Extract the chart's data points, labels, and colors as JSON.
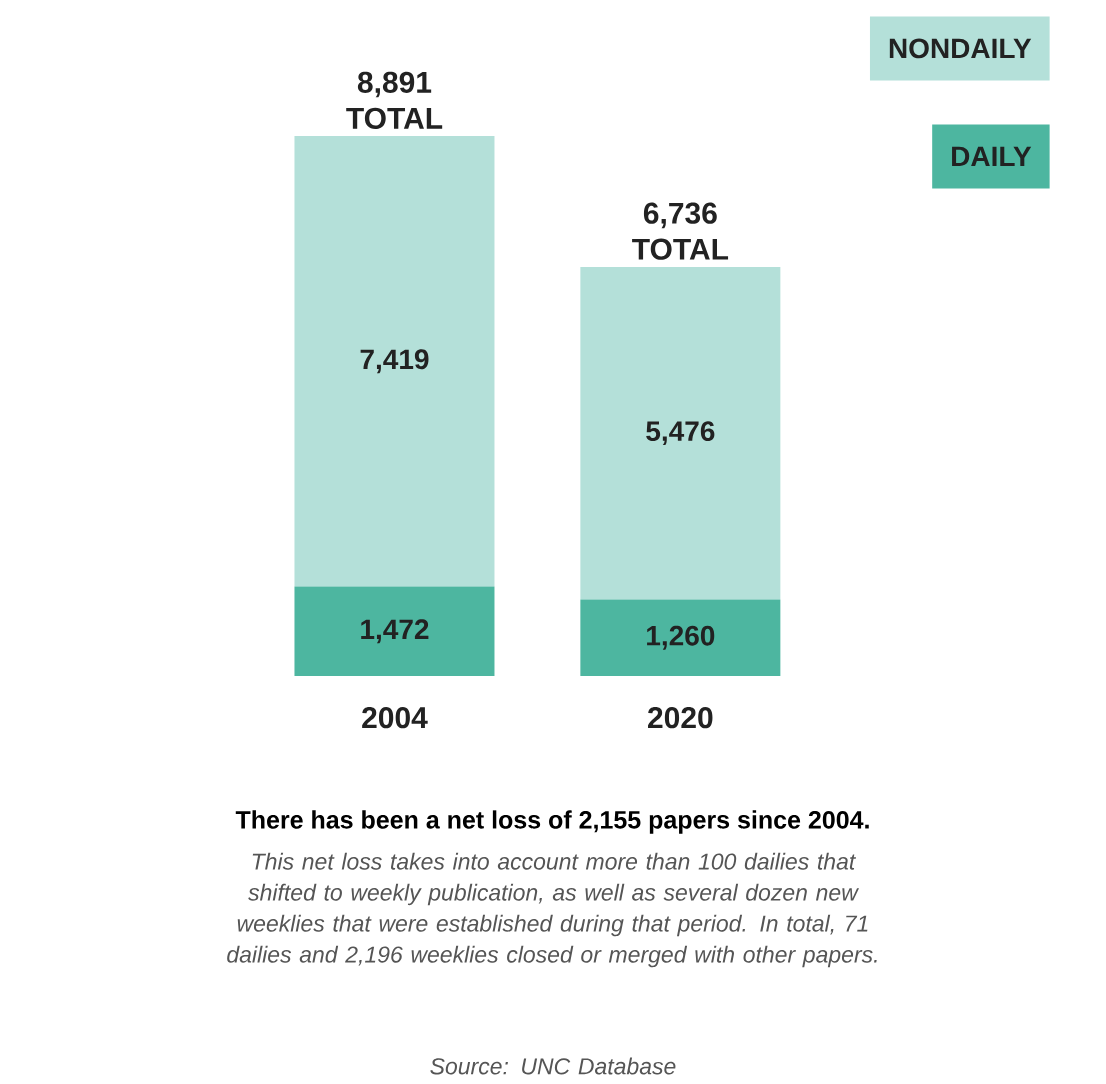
{
  "chart_data": {
    "type": "bar",
    "stacked": true,
    "title": "There has been a net loss of 2,155 papers since 2004.",
    "categories": [
      "2004",
      "2020"
    ],
    "series": [
      {
        "name": "DAILY",
        "color": "#4db6a0",
        "values": [
          1472,
          1260
        ],
        "value_labels": [
          "1,472",
          "1,260"
        ]
      },
      {
        "name": "NONDAILY",
        "color": "#b4e0d9",
        "values": [
          7419,
          5476
        ],
        "value_labels": [
          "7,419",
          "5,476"
        ]
      }
    ],
    "totals": [
      "8,891 TOTAL",
      "6,736 TOTAL"
    ],
    "legend": "top right",
    "annotations": [
      "This net loss takes into account more than 100 dailies that shifted to weekly publication, as well as several dozen new weeklies that were established during that period. In total, 71 dailies and 2,196 weeklies closed or merged with other papers.",
      "Source: UNC Database"
    ]
  }
}
